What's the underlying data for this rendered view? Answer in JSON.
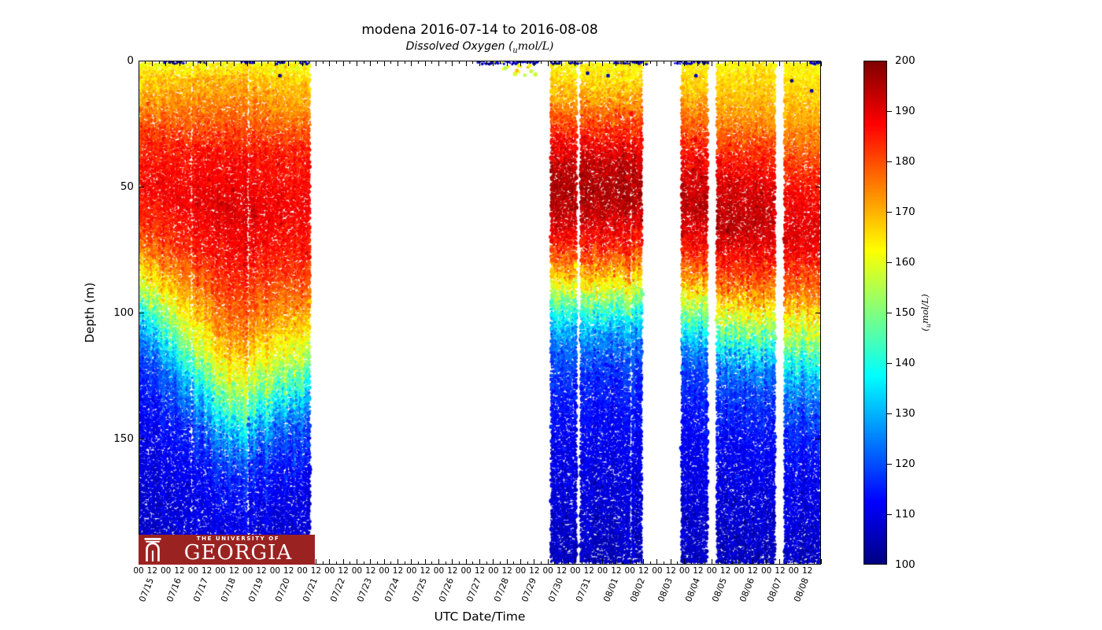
{
  "title": "modena 2016-07-14 to 2016-08-08",
  "subtitle": {
    "prefix": "Dissolved Oxygen (",
    "sub": "u",
    "suffix": "mol/L)"
  },
  "x_axis": {
    "label": "UTC Date/Time",
    "hour_labels": [
      "00",
      "12"
    ],
    "date_labels": [
      "07/15",
      "07/16",
      "07/17",
      "07/18",
      "07/19",
      "07/20",
      "07/21",
      "07/22",
      "07/23",
      "07/24",
      "07/25",
      "07/26",
      "07/27",
      "07/28",
      "07/29",
      "07/30",
      "07/31",
      "08/01",
      "08/02",
      "08/03",
      "08/04",
      "08/05",
      "08/06",
      "08/07",
      "08/08"
    ]
  },
  "y_axis": {
    "label": "Depth (m)",
    "tick_values": [
      0,
      50,
      100,
      150
    ],
    "range": [
      0,
      200
    ]
  },
  "colorbar": {
    "tick_values": [
      100,
      110,
      120,
      130,
      140,
      150,
      160,
      170,
      180,
      190,
      200
    ],
    "label": {
      "prefix": "(",
      "sub": "u",
      "suffix": "mol/L)"
    },
    "range": [
      100,
      200
    ],
    "colormap": "jet"
  },
  "logo": {
    "line1": "THE UNIVERSITY OF",
    "line2": "GEORGIA",
    "bg_color": "#9a2322"
  },
  "chart_data": {
    "type": "scatter",
    "title": "modena 2016-07-14 to 2016-08-08",
    "parameter": "Dissolved Oxygen (umol/L)",
    "x_start": "2016-07-15 00:00 UTC",
    "x_end": "2016-08-09 00:00 UTC",
    "days_total": 25,
    "depth_range_m": [
      0,
      200
    ],
    "color_range": [
      100,
      200
    ],
    "colormap": "jet",
    "blocks": [
      {
        "start_day": 0.0,
        "end_day": 6.29,
        "start": "07/15 00:00",
        "end": "07/21 07:00",
        "gaps": [
          [
            1.92,
            1.95
          ],
          [
            3.98,
            4.05
          ]
        ],
        "profiles": [
          {
            "t": 0.0,
            "pts": [
              [
                0,
                160
              ],
              [
                6,
                166
              ],
              [
                16,
                172
              ],
              [
                30,
                183
              ],
              [
                50,
                187
              ],
              [
                68,
                181
              ],
              [
                78,
                170
              ],
              [
                86,
                158
              ],
              [
                94,
                145
              ],
              [
                102,
                130
              ],
              [
                112,
                120
              ],
              [
                130,
                113
              ],
              [
                155,
                109
              ],
              [
                200,
                106
              ]
            ]
          },
          {
            "t": 0.55,
            "pts": [
              [
                0,
                162
              ],
              [
                8,
                170
              ],
              [
                20,
                177
              ],
              [
                38,
                187
              ],
              [
                60,
                191
              ],
              [
                80,
                187
              ],
              [
                95,
                181
              ],
              [
                110,
                174
              ],
              [
                125,
                163
              ],
              [
                138,
                149
              ],
              [
                150,
                131
              ],
              [
                162,
                118
              ],
              [
                178,
                112
              ],
              [
                200,
                108
              ]
            ]
          },
          {
            "t": 1.0,
            "pts": [
              [
                0,
                161
              ],
              [
                8,
                167
              ],
              [
                20,
                173
              ],
              [
                35,
                184
              ],
              [
                58,
                188
              ],
              [
                80,
                184
              ],
              [
                95,
                176
              ],
              [
                105,
                167
              ],
              [
                115,
                157
              ],
              [
                125,
                145
              ],
              [
                135,
                129
              ],
              [
                148,
                118
              ],
              [
                168,
                111
              ],
              [
                200,
                106
              ]
            ]
          }
        ]
      },
      {
        "start_day": 15.11,
        "end_day": 16.06,
        "start": "07/30 02:30",
        "end": "07/31 01:30",
        "profiles": [
          {
            "t": 0,
            "pts": [
              [
                0,
                162
              ],
              [
                6,
                165
              ],
              [
                15,
                171
              ],
              [
                25,
                181
              ],
              [
                38,
                192
              ],
              [
                50,
                196
              ],
              [
                62,
                193
              ],
              [
                72,
                186
              ],
              [
                80,
                176
              ],
              [
                88,
                164
              ],
              [
                95,
                150
              ],
              [
                103,
                135
              ],
              [
                112,
                124
              ],
              [
                125,
                117
              ],
              [
                150,
                111
              ],
              [
                200,
                106
              ]
            ]
          }
        ]
      },
      {
        "start_day": 16.2,
        "end_day": 17.99,
        "start": "07/31 05:00",
        "end": "08/01 23:45",
        "profiles": [
          {
            "t": 0,
            "pts": [
              [
                0,
                162
              ],
              [
                6,
                165
              ],
              [
                15,
                171
              ],
              [
                26,
                182
              ],
              [
                40,
                193
              ],
              [
                52,
                196
              ],
              [
                64,
                192
              ],
              [
                74,
                185
              ],
              [
                82,
                175
              ],
              [
                90,
                163
              ],
              [
                97,
                149
              ],
              [
                105,
                134
              ],
              [
                114,
                123
              ],
              [
                127,
                116
              ],
              [
                152,
                111
              ],
              [
                200,
                106
              ]
            ]
          }
        ]
      },
      {
        "start_day": 18.08,
        "end_day": 18.42,
        "start": "08/02 02:00",
        "end": "08/02 10:00",
        "profiles": [
          {
            "t": 0,
            "pts": [
              [
                0,
                162
              ],
              [
                6,
                165
              ],
              [
                15,
                171
              ],
              [
                25,
                181
              ],
              [
                38,
                191
              ],
              [
                50,
                195
              ],
              [
                62,
                192
              ],
              [
                72,
                185
              ],
              [
                80,
                175
              ],
              [
                88,
                163
              ],
              [
                95,
                150
              ],
              [
                103,
                135
              ],
              [
                112,
                124
              ],
              [
                125,
                117
              ],
              [
                150,
                111
              ],
              [
                200,
                106
              ]
            ]
          }
        ]
      },
      {
        "start_day": 19.9,
        "end_day": 20.85,
        "start": "08/03 21:30",
        "end": "08/04 20:30",
        "profiles": [
          {
            "t": 0,
            "pts": [
              [
                0,
                163
              ],
              [
                8,
                166
              ],
              [
                18,
                172
              ],
              [
                30,
                182
              ],
              [
                45,
                191
              ],
              [
                58,
                194
              ],
              [
                70,
                189
              ],
              [
                80,
                180
              ],
              [
                88,
                170
              ],
              [
                96,
                157
              ],
              [
                104,
                143
              ],
              [
                112,
                128
              ],
              [
                122,
                119
              ],
              [
                135,
                114
              ],
              [
                160,
                110
              ],
              [
                200,
                106
              ]
            ]
          }
        ]
      },
      {
        "start_day": 21.19,
        "end_day": 23.33,
        "start": "08/05 04:30",
        "end": "08/07 08:00",
        "profiles": [
          {
            "t": 0,
            "pts": [
              [
                0,
                163
              ],
              [
                10,
                167
              ],
              [
                22,
                173
              ],
              [
                35,
                183
              ],
              [
                50,
                192
              ],
              [
                65,
                195
              ],
              [
                78,
                188
              ],
              [
                88,
                179
              ],
              [
                96,
                168
              ],
              [
                104,
                155
              ],
              [
                112,
                141
              ],
              [
                120,
                127
              ],
              [
                130,
                119
              ],
              [
                145,
                114
              ],
              [
                165,
                110
              ],
              [
                200,
                106
              ]
            ]
          },
          {
            "t": 1,
            "pts": [
              [
                0,
                164
              ],
              [
                12,
                168
              ],
              [
                25,
                174
              ],
              [
                38,
                184
              ],
              [
                52,
                191
              ],
              [
                66,
                193
              ],
              [
                78,
                187
              ],
              [
                88,
                178
              ],
              [
                98,
                167
              ],
              [
                106,
                154
              ],
              [
                114,
                140
              ],
              [
                122,
                127
              ],
              [
                132,
                119
              ],
              [
                147,
                114
              ],
              [
                167,
                110
              ],
              [
                200,
                106
              ]
            ]
          }
        ]
      },
      {
        "start_day": 23.67,
        "end_day": 24.97,
        "start": "08/07 16:00",
        "end": "08/08 23:15",
        "profiles": [
          {
            "t": 0,
            "pts": [
              [
                0,
                162
              ],
              [
                10,
                166
              ],
              [
                25,
                172
              ],
              [
                40,
                181
              ],
              [
                55,
                188
              ],
              [
                70,
                191
              ],
              [
                82,
                184
              ],
              [
                92,
                175
              ],
              [
                102,
                164
              ],
              [
                112,
                151
              ],
              [
                122,
                136
              ],
              [
                132,
                124
              ],
              [
                145,
                117
              ],
              [
                162,
                112
              ],
              [
                182,
                109
              ],
              [
                200,
                106
              ]
            ]
          }
        ]
      }
    ],
    "surface_navy_strips_days": [
      [
        0.95,
        1.65
      ],
      [
        2.2,
        2.45
      ],
      [
        3.8,
        4.2
      ],
      [
        5.05,
        5.35
      ],
      [
        5.95,
        6.25
      ],
      [
        12.45,
        14.7
      ],
      [
        15.1,
        15.45
      ],
      [
        15.8,
        16.2
      ],
      [
        17.4,
        18.0
      ],
      [
        18.1,
        18.65
      ],
      [
        19.65,
        20.9
      ],
      [
        24.6,
        24.95
      ]
    ],
    "surface_yellow_strips_days": [
      [
        13.3,
        14.62
      ]
    ],
    "outlier_dots_day_depth": [
      [
        5.18,
        6
      ],
      [
        16.45,
        5
      ],
      [
        17.2,
        6
      ],
      [
        20.42,
        6
      ],
      [
        23.93,
        8
      ],
      [
        24.66,
        12
      ]
    ]
  }
}
